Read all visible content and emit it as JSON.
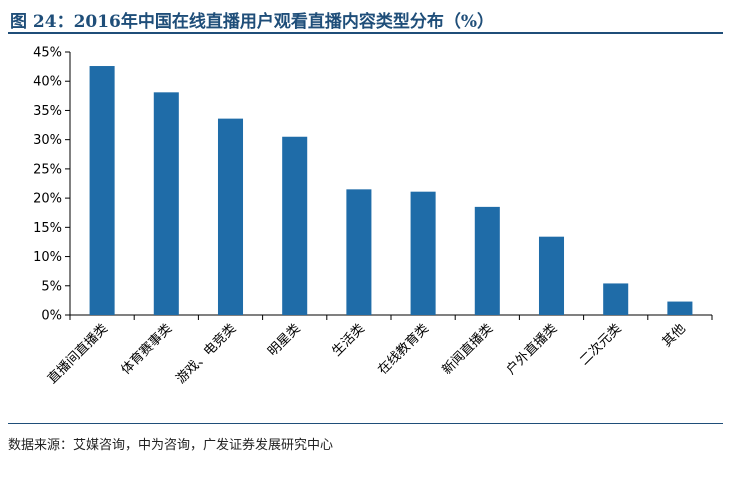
{
  "header": {
    "title": "图 24：2016年中国在线直播用户观看直播内容类型分布（%）"
  },
  "footer": {
    "source": "数据来源：艾媒咨询，中为咨询，广发证券发展研究中心"
  },
  "colors": {
    "bar": "#1f6ca8",
    "accent": "#1f4e79"
  },
  "chart_data": {
    "type": "bar",
    "categories": [
      "直播间直播类",
      "体育赛事类",
      "游戏、电竞类",
      "明星类",
      "生活类",
      "在线教育类",
      "新闻直播类",
      "户外直播类",
      "二次元类",
      "其他"
    ],
    "values": [
      42.6,
      38.1,
      33.6,
      30.5,
      21.5,
      21.1,
      18.5,
      13.4,
      5.4,
      2.3
    ],
    "ylim": [
      0,
      45
    ],
    "yticks": [
      0,
      5,
      10,
      15,
      20,
      25,
      30,
      35,
      40,
      45
    ],
    "ytick_labels": [
      "0%",
      "5%",
      "10%",
      "15%",
      "20%",
      "25%",
      "30%",
      "35%",
      "40%",
      "45%"
    ],
    "grid": false,
    "legend": "none"
  }
}
